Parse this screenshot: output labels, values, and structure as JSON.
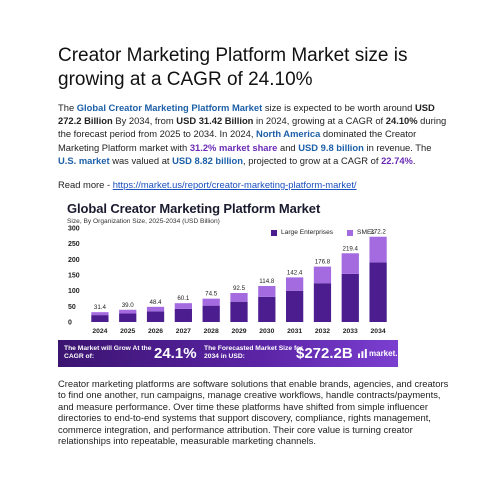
{
  "article": {
    "headline": "Creator Marketing Platform Market size is growing at a CAGR of 24.10%",
    "intro": {
      "p1": "The ",
      "p2": "Global Creator Marketing Platform Market",
      "p3": " size is expected to be worth around ",
      "p4": "USD 272.2 Billion",
      "p5": " By 2034, from ",
      "p6": "USD 31.42 Billion",
      "p7": " in 2024, growing at a CAGR of ",
      "p8": "24.10%",
      "p9": " during the forecast period from 2025 to 2034. In 2024, ",
      "p10": "North America",
      "p11": " dominated the Creator Marketing Platform market with ",
      "p12": "31.2% market share",
      "p13": " and ",
      "p14": "USD 9.8 billion",
      "p15": " in revenue. The ",
      "p16": "U.S. market",
      "p17": " was valued at ",
      "p18": "USD 8.82 billion",
      "p19": ", projected to grow at a CAGR of ",
      "p20": "22.74%",
      "p21": "."
    },
    "readmore_label": "Read more - ",
    "readmore_link": "https://market.us/report/creator-marketing-platform-market/",
    "outro": "Creator marketing platforms are software solutions that enable brands, agencies, and creators to find one another, run campaigns, manage creative workflows, handle contracts/payments, and measure performance. Over time these platforms have shifted from simple influencer directories to end-to-end systems that support discovery, compliance, rights management, commerce integration, and performance attribution. Their core value is turning creator relationships into repeatable, measurable marketing channels."
  },
  "banner": {
    "label1": "The Market will Grow At the CAGR of:",
    "value1": "24.1%",
    "label2": "The Forecasted Market Size for 2034 in USD:",
    "value2": "$272.2B",
    "brand": "market.us"
  },
  "colors": {
    "large": "#4b1d8f",
    "sme": "#a46be0",
    "accent": "#1d5fa8"
  },
  "chart_data": {
    "type": "bar",
    "stacked": true,
    "title": "Global Creator Marketing Platform Market",
    "subtitle": "Size, By Organization Size, 2025-2034 (USD Billion)",
    "categories": [
      "2024",
      "2025",
      "2026",
      "2027",
      "2028",
      "2029",
      "2030",
      "2031",
      "2032",
      "2033",
      "2034"
    ],
    "totals": [
      31.4,
      39.0,
      48.4,
      60.1,
      74.5,
      92.5,
      114.8,
      142.4,
      176.8,
      219.4,
      272.2
    ],
    "series": [
      {
        "name": "Large Enterprises",
        "values": [
          22.0,
          27.3,
          33.9,
          42.1,
          52.2,
          64.8,
          80.4,
          99.7,
          123.8,
          153.6,
          190.5
        ]
      },
      {
        "name": "SMEs",
        "values": [
          9.4,
          11.7,
          14.5,
          18.0,
          22.3,
          27.7,
          34.4,
          42.7,
          53.0,
          65.8,
          81.7
        ]
      }
    ],
    "yticks": [
      0,
      50,
      100,
      150,
      200,
      250,
      300
    ],
    "ylim": [
      0,
      300
    ],
    "legend": "top-right",
    "grid": false
  }
}
